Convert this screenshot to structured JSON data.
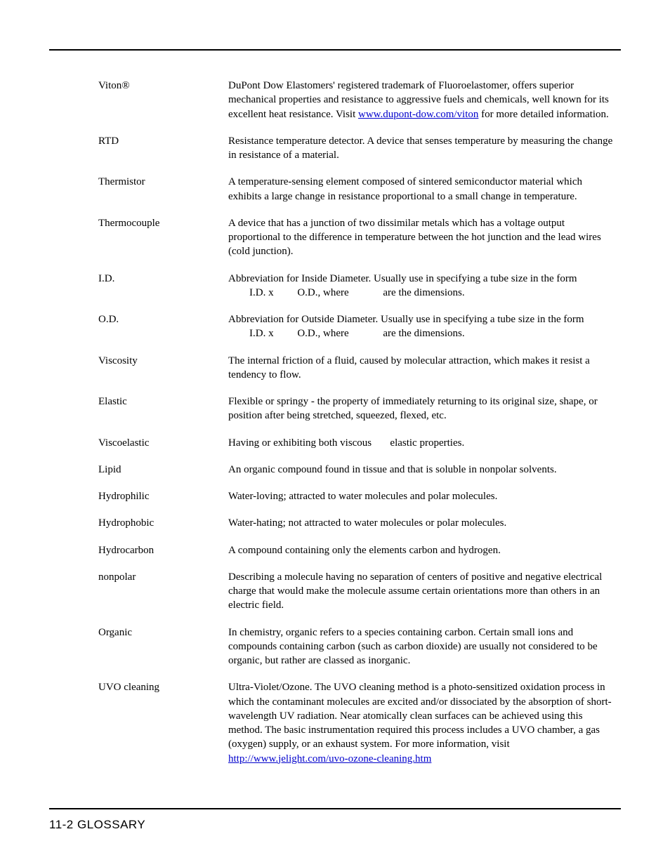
{
  "footer": {
    "text": "11-2  GLOSSARY"
  },
  "entries": [
    {
      "term": "Viton®",
      "def_pre": "DuPont Dow Elastomers' registered trademark of Fluoroelastomer, offers superior mechanical properties and resistance to aggressive fuels and chemicals, well known for its excellent heat resistance.  Visit ",
      "link": "www.dupont-dow.com/viton",
      "def_post": " for more detailed information."
    },
    {
      "term": "RTD",
      "def": "Resistance temperature detector.  A device that senses temperature by measuring the change in resistance of a material."
    },
    {
      "term": "Thermistor",
      "def": "A temperature-sensing element composed of sintered semiconductor material which exhibits a large change in resistance proportional to a small change in temperature."
    },
    {
      "term": "Thermocouple",
      "def": "A device that has a junction of two dissimilar metals which has a voltage output proportional to the difference in temperature between the hot junction and the lead wires (cold junction)."
    },
    {
      "term": "I.D.",
      "def_line1": "Abbreviation for Inside Diameter.  Usually use in specifying a tube size in the form",
      "def_line2_a": "I.D. x ",
      "def_line2_b": "O.D., where ",
      "def_line2_c": "are the dimensions."
    },
    {
      "term": "O.D.",
      "def_line1": "Abbreviation for Outside Diameter.  Usually use in specifying a tube size in the form",
      "def_line2_a": "I.D. x ",
      "def_line2_b": "O.D., where ",
      "def_line2_c": "are the dimensions."
    },
    {
      "term": "Viscosity",
      "def": "The internal friction of a fluid, caused by molecular attraction, which makes it resist a tendency to flow."
    },
    {
      "term": "Elastic",
      "def": "Flexible or springy - the property of immediately returning to its original size, shape, or position after being stretched, squeezed, flexed, etc."
    },
    {
      "term": "Viscoelastic",
      "def_a": "Having or exhibiting both viscous ",
      "def_b": "elastic properties."
    },
    {
      "term": "Lipid",
      "def": "An organic compound found in tissue and that is soluble in nonpolar solvents."
    },
    {
      "term": "Hydrophilic",
      "def": "Water-loving; attracted to water molecules and polar molecules."
    },
    {
      "term": "Hydrophobic",
      "def": "Water-hating; not attracted to water molecules or polar molecules."
    },
    {
      "term": "Hydrocarbon",
      "def": "A compound containing only the elements carbon and hydrogen."
    },
    {
      "term": "nonpolar",
      "def": "Describing a molecule having no separation of centers of positive and negative electrical charge that would make the molecule assume certain orientations more than others in an electric field."
    },
    {
      "term": "Organic",
      "def": "In chemistry, organic refers to a species containing carbon. Certain small ions and compounds containing carbon (such as carbon dioxide) are usually not considered to be organic, but rather are classed as inorganic."
    },
    {
      "term": "UVO cleaning",
      "def_pre": "Ultra-Violet/Ozone.  The UVO cleaning method is a photo-sensitized oxidation process in which the contaminant molecules are excited and/or dissociated by the absorption of short-wavelength UV radiation. Near atomically clean surfaces can be achieved using this method.  The basic instrumentation required this process includes a UVO chamber, a gas (oxygen) supply, or an exhaust system. For more information, visit ",
      "link": "http://www.jelight.com/uvo-ozone-cleaning.htm",
      "def_post": ""
    }
  ]
}
